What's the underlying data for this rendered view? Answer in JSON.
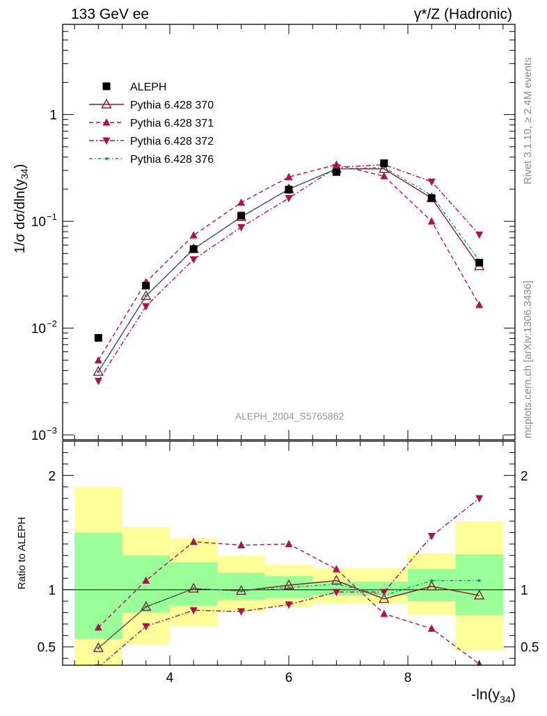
{
  "header": {
    "left": "133 GeV ee",
    "right": "γ*/Z (Hadronic)"
  },
  "side_labels": {
    "rivet": "Rivet 3.1.10, ≥ 2.4M events",
    "mcplots": "mcplots.cern.ch [arXiv:1306.3436]"
  },
  "watermark": "ALEPH_2004_S5765862",
  "axes": {
    "main_ylabel": "1/σ  dσ/dln(y34)",
    "ratio_ylabel": "Ratio to ALEPH",
    "xlabel": "-ln(y34)"
  },
  "legend": [
    {
      "name": "ALEPH",
      "color": "#000000",
      "style": "solid",
      "marker": "square"
    },
    {
      "name": "Pythia 6.428 370",
      "color": "#8b1a2b",
      "style": "solid",
      "marker": "triangle-up-open"
    },
    {
      "name": "Pythia 6.428 371",
      "color": "#b0104e",
      "style": "dashed",
      "marker": "triangle-up"
    },
    {
      "name": "Pythia 6.428 372",
      "color": "#b0104e",
      "style": "dashdot",
      "marker": "triangle-down"
    },
    {
      "name": "Pythia 6.428 376",
      "color": "#119977",
      "style": "dotdash",
      "marker": "dot"
    }
  ],
  "chart_data": [
    {
      "type": "scatter",
      "yscale": "log",
      "xlim": [
        2.2,
        9.8
      ],
      "ylim": [
        0.0009,
        7
      ],
      "y_ticks": [
        {
          "v": 0.001,
          "label": "10",
          "exp": "−3"
        },
        {
          "v": 0.01,
          "label": "10",
          "exp": "−2"
        },
        {
          "v": 0.1,
          "label": "10",
          "exp": "−1"
        },
        {
          "v": 1,
          "label": "1",
          "exp": ""
        }
      ],
      "x": [
        2.8,
        3.6,
        4.4,
        5.2,
        6.0,
        6.8,
        7.6,
        8.4,
        9.2
      ],
      "series": [
        {
          "name": "ALEPH",
          "values": [
            0.0081,
            0.025,
            0.055,
            0.113,
            0.198,
            0.29,
            0.35,
            0.165,
            0.041
          ]
        },
        {
          "name": "Pythia 6.428 370",
          "values": [
            0.0039,
            0.02,
            0.055,
            0.11,
            0.2,
            0.31,
            0.31,
            0.165,
            0.038
          ]
        },
        {
          "name": "Pythia 6.428 371",
          "values": [
            0.005,
            0.027,
            0.074,
            0.15,
            0.26,
            0.34,
            0.265,
            0.1,
            0.0165
          ]
        },
        {
          "name": "Pythia 6.428 372",
          "values": [
            0.0032,
            0.016,
            0.044,
            0.088,
            0.165,
            0.32,
            0.34,
            0.235,
            0.075
          ]
        },
        {
          "name": "Pythia 6.428 376",
          "values": [
            0.0039,
            0.02,
            0.055,
            0.11,
            0.2,
            0.31,
            0.32,
            0.175,
            0.043
          ]
        }
      ]
    },
    {
      "type": "scatter",
      "xlim": [
        2.2,
        9.8
      ],
      "ylim": [
        0.34,
        2.3
      ],
      "x_ticks": [
        4,
        6,
        8
      ],
      "y_ticks": [
        0.5,
        1,
        2
      ],
      "reference": 1,
      "bands": [
        {
          "x0": 2.4,
          "x1": 3.2,
          "y_low": 0.3,
          "y_high": 1.9,
          "g_low": 0.57,
          "g_high": 1.5
        },
        {
          "x0": 3.2,
          "x1": 4.0,
          "y_low": 0.52,
          "y_high": 1.55,
          "g_low": 0.8,
          "g_high": 1.3
        },
        {
          "x0": 4.0,
          "x1": 4.8,
          "y_low": 0.68,
          "y_high": 1.45,
          "g_low": 0.86,
          "g_high": 1.24
        },
        {
          "x0": 4.8,
          "x1": 5.6,
          "y_low": 0.81,
          "y_high": 1.3,
          "g_low": 0.91,
          "g_high": 1.15
        },
        {
          "x0": 5.6,
          "x1": 6.4,
          "y_low": 0.85,
          "y_high": 1.22,
          "g_low": 0.93,
          "g_high": 1.12
        },
        {
          "x0": 6.4,
          "x1": 7.2,
          "y_low": 0.88,
          "y_high": 1.19,
          "g_low": 0.95,
          "g_high": 1.07
        },
        {
          "x0": 7.2,
          "x1": 8.0,
          "y_low": 0.88,
          "y_high": 1.19,
          "g_low": 0.95,
          "g_high": 1.07
        },
        {
          "x0": 8.0,
          "x1": 8.8,
          "y_low": 0.78,
          "y_high": 1.32,
          "g_low": 0.9,
          "g_high": 1.18
        },
        {
          "x0": 8.8,
          "x1": 9.6,
          "y_low": 0.47,
          "y_high": 1.6,
          "g_low": 0.78,
          "g_high": 1.31
        }
      ],
      "x": [
        2.8,
        3.6,
        4.4,
        5.2,
        6.0,
        6.8,
        7.6,
        8.4,
        9.2
      ],
      "series": [
        {
          "name": "Pythia 6.428 370",
          "values": [
            0.49,
            0.85,
            1.01,
            0.99,
            1.04,
            1.08,
            0.92,
            1.03,
            0.95
          ]
        },
        {
          "name": "Pythia 6.428 371",
          "values": [
            0.67,
            1.08,
            1.42,
            1.39,
            1.4,
            1.18,
            0.79,
            0.66,
            0.35
          ]
        },
        {
          "name": "Pythia 6.428 372",
          "values": [
            0.32,
            0.68,
            0.82,
            0.81,
            0.87,
            0.98,
            0.98,
            1.47,
            1.8
          ]
        },
        {
          "name": "Pythia 6.428 376",
          "values": [
            0.49,
            0.85,
            1.01,
            0.99,
            1.02,
            1.05,
            0.95,
            1.08,
            1.08
          ]
        }
      ]
    }
  ]
}
